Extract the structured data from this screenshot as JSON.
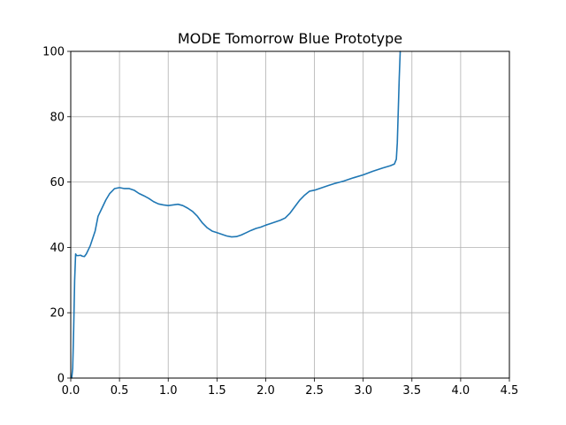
{
  "chart_data": {
    "type": "line",
    "title": "MODE Tomorrow Blue Prototype",
    "xlabel": "",
    "ylabel": "",
    "xlim": [
      0,
      4.5
    ],
    "ylim": [
      0,
      100
    ],
    "grid": true,
    "x_ticks": [
      "0.0",
      "0.5",
      "1.0",
      "1.5",
      "2.0",
      "2.5",
      "3.0",
      "3.5",
      "4.0",
      "4.5"
    ],
    "y_ticks": [
      "0",
      "20",
      "40",
      "60",
      "80",
      "100"
    ],
    "series": [
      {
        "color": "#1f77b4",
        "points": [
          [
            0.01,
            0
          ],
          [
            0.02,
            3
          ],
          [
            0.03,
            15
          ],
          [
            0.04,
            30
          ],
          [
            0.05,
            38
          ],
          [
            0.06,
            37.5
          ],
          [
            0.08,
            37.5
          ],
          [
            0.1,
            37.6
          ],
          [
            0.12,
            37.3
          ],
          [
            0.14,
            37.2
          ],
          [
            0.16,
            38
          ],
          [
            0.2,
            40.5
          ],
          [
            0.25,
            45
          ],
          [
            0.28,
            49.5
          ],
          [
            0.32,
            52
          ],
          [
            0.36,
            54.5
          ],
          [
            0.4,
            56.5
          ],
          [
            0.45,
            58
          ],
          [
            0.5,
            58.3
          ],
          [
            0.55,
            58
          ],
          [
            0.6,
            58
          ],
          [
            0.65,
            57.5
          ],
          [
            0.7,
            56.5
          ],
          [
            0.75,
            55.8
          ],
          [
            0.8,
            55
          ],
          [
            0.85,
            54
          ],
          [
            0.9,
            53.3
          ],
          [
            0.95,
            53
          ],
          [
            1.0,
            52.8
          ],
          [
            1.05,
            53
          ],
          [
            1.1,
            53.2
          ],
          [
            1.15,
            52.8
          ],
          [
            1.2,
            52
          ],
          [
            1.25,
            51
          ],
          [
            1.3,
            49.5
          ],
          [
            1.35,
            47.5
          ],
          [
            1.4,
            46
          ],
          [
            1.45,
            45
          ],
          [
            1.5,
            44.5
          ],
          [
            1.55,
            44
          ],
          [
            1.6,
            43.5
          ],
          [
            1.65,
            43.2
          ],
          [
            1.7,
            43.3
          ],
          [
            1.75,
            43.8
          ],
          [
            1.8,
            44.5
          ],
          [
            1.85,
            45.2
          ],
          [
            1.9,
            45.8
          ],
          [
            1.95,
            46.2
          ],
          [
            2.0,
            46.8
          ],
          [
            2.05,
            47.3
          ],
          [
            2.1,
            47.8
          ],
          [
            2.15,
            48.3
          ],
          [
            2.2,
            49
          ],
          [
            2.25,
            50.5
          ],
          [
            2.3,
            52.5
          ],
          [
            2.35,
            54.5
          ],
          [
            2.4,
            56
          ],
          [
            2.45,
            57.2
          ],
          [
            2.5,
            57.5
          ],
          [
            2.55,
            58
          ],
          [
            2.6,
            58.5
          ],
          [
            2.65,
            59
          ],
          [
            2.7,
            59.5
          ],
          [
            2.8,
            60.3
          ],
          [
            2.9,
            61.3
          ],
          [
            3.0,
            62.2
          ],
          [
            3.1,
            63.3
          ],
          [
            3.2,
            64.3
          ],
          [
            3.28,
            65
          ],
          [
            3.32,
            65.5
          ],
          [
            3.34,
            67
          ],
          [
            3.35,
            72
          ],
          [
            3.36,
            82
          ],
          [
            3.37,
            92
          ],
          [
            3.38,
            100
          ]
        ]
      }
    ]
  }
}
